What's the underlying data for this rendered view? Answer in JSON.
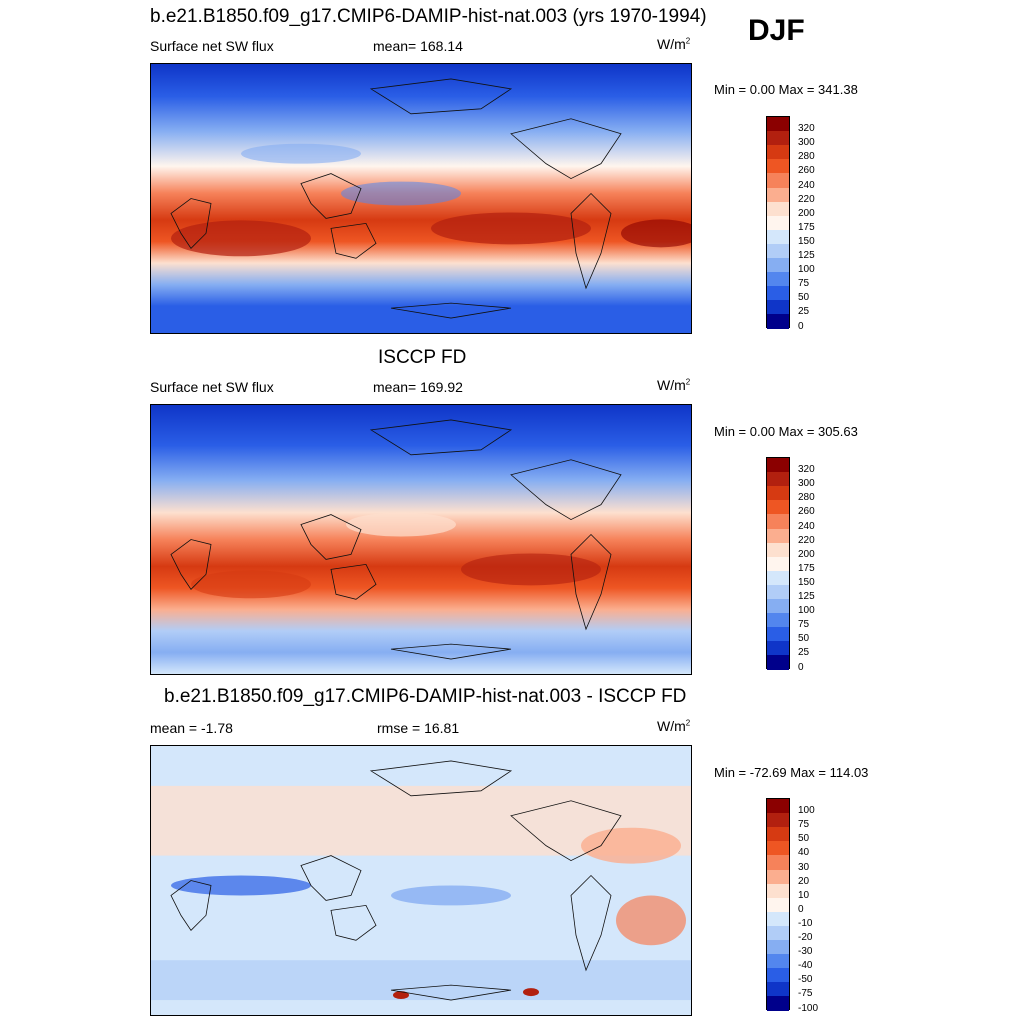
{
  "season": "DJF",
  "panels": [
    {
      "title": "b.e21.B1850.f09_g17.CMIP6-DAMIP-hist-nat.003 (yrs 1970-1994)",
      "left_label": "Surface net SW flux",
      "center_label": "mean= 168.14",
      "units": "W/m",
      "units_sup": "2",
      "minmax": "Min =   0.00 Max = 341.38",
      "colorbar_labels": [
        "320",
        "300",
        "280",
        "260",
        "240",
        "220",
        "200",
        "175",
        "150",
        "125",
        "100",
        "75",
        "50",
        "25",
        "0"
      ],
      "colorbar_colors": [
        "#8b0000",
        "#b2200f",
        "#d63a12",
        "#ee5623",
        "#f6825a",
        "#fbae8f",
        "#fde0cf",
        "#fff5ee",
        "#d4e7fb",
        "#b1cdf7",
        "#86aef2",
        "#5386ee",
        "#2a5ee6",
        "#0f35c8",
        "#00008b"
      ]
    },
    {
      "title": "ISCCP FD",
      "left_label": "Surface net SW flux",
      "center_label": "mean= 169.92",
      "units": "W/m",
      "units_sup": "2",
      "minmax": "Min =   0.00 Max = 305.63",
      "colorbar_labels": [
        "320",
        "300",
        "280",
        "260",
        "240",
        "220",
        "200",
        "175",
        "150",
        "125",
        "100",
        "75",
        "50",
        "25",
        "0"
      ],
      "colorbar_colors": [
        "#8b0000",
        "#b2200f",
        "#d63a12",
        "#ee5623",
        "#f6825a",
        "#fbae8f",
        "#fde0cf",
        "#fff5ee",
        "#d4e7fb",
        "#b1cdf7",
        "#86aef2",
        "#5386ee",
        "#2a5ee6",
        "#0f35c8",
        "#00008b"
      ]
    },
    {
      "title": "b.e21.B1850.f09_g17.CMIP6-DAMIP-hist-nat.003 - ISCCP FD",
      "left_label": "mean =  -1.78",
      "center_label": "rmse =  16.81",
      "units": "W/m",
      "units_sup": "2",
      "minmax": "Min = -72.69 Max = 114.03",
      "colorbar_labels": [
        "100",
        "75",
        "50",
        "40",
        "30",
        "20",
        "10",
        "0",
        "-10",
        "-20",
        "-30",
        "-40",
        "-50",
        "-75",
        "-100"
      ],
      "colorbar_colors": [
        "#8b0000",
        "#b2200f",
        "#d63a12",
        "#ee5623",
        "#f6825a",
        "#fbae8f",
        "#fde0cf",
        "#fff5ee",
        "#d4e7fb",
        "#b1cdf7",
        "#86aef2",
        "#5386ee",
        "#2a5ee6",
        "#0f35c8",
        "#00008b"
      ]
    }
  ]
}
